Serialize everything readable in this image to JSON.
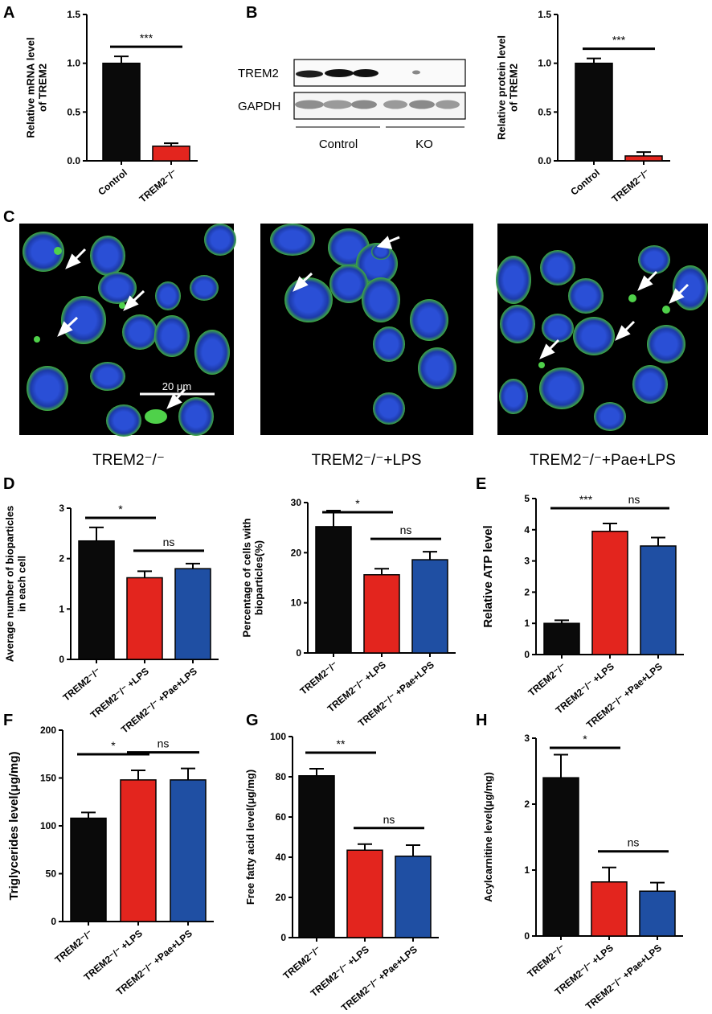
{
  "figure": {
    "panel_letters": [
      "A",
      "B",
      "C",
      "D",
      "E",
      "F",
      "G",
      "H"
    ],
    "colors": {
      "control": "#0a0a0a",
      "lps": "#e3251e",
      "pae_lps": "#1f4fa3",
      "cell_membrane": "#3fae3a",
      "nucleus": "#2a4fd6",
      "micro_bg": "#000000"
    }
  },
  "western_blot": {
    "row_labels": [
      "TREM2",
      "GAPDH"
    ],
    "group_labels": [
      "Control",
      "KO"
    ]
  },
  "microscopy": {
    "captions": [
      "TREM2⁻/⁻",
      "TREM2⁻/⁻+LPS",
      "TREM2⁻/⁻+Pae+LPS"
    ],
    "scale_bar_label": "20 μm",
    "panel_subject": [
      "fluorescent cells with arrows marking bioparticles"
    ]
  },
  "chart_data": [
    {
      "panel": "A",
      "type": "bar",
      "categories": [
        "Control",
        "TREM2⁻/⁻"
      ],
      "values": [
        1.0,
        0.15
      ],
      "errors": [
        0.07,
        0.03
      ],
      "colors": [
        "#0a0a0a",
        "#e3251e"
      ],
      "ylabel": "Relative mRNA level of TREM2",
      "ylabel_lines": [
        "Relative mRNA level",
        "of TREM2"
      ],
      "ylim": [
        0,
        1.5
      ],
      "yticks": [
        0.0,
        0.5,
        1.0,
        1.5
      ],
      "tick_labels": [
        "0.0",
        "0.5",
        "1.0",
        "1.5"
      ],
      "significance": [
        {
          "from": 0,
          "to": 1,
          "label": "***"
        }
      ]
    },
    {
      "panel": "B",
      "type": "bar",
      "categories": [
        "Control",
        "TREM2⁻/⁻"
      ],
      "values": [
        1.0,
        0.05
      ],
      "errors": [
        0.05,
        0.04
      ],
      "colors": [
        "#0a0a0a",
        "#e3251e"
      ],
      "ylabel": "Relative protein level of TREM2",
      "ylabel_lines": [
        "Relative protein level",
        "of TREM2"
      ],
      "ylim": [
        0,
        1.5
      ],
      "yticks": [
        0.0,
        0.5,
        1.0,
        1.5
      ],
      "tick_labels": [
        "0.0",
        "0.5",
        "1.0",
        "1.5"
      ],
      "significance": [
        {
          "from": 0,
          "to": 1,
          "label": "***"
        }
      ]
    },
    {
      "panel": "D1",
      "type": "bar",
      "categories": [
        "TREM2⁻/⁻",
        "TREM2⁻/⁻ +LPS",
        "TREM2⁻/⁻ +Pae+LPS"
      ],
      "values": [
        2.35,
        1.62,
        1.8
      ],
      "errors": [
        0.27,
        0.13,
        0.1
      ],
      "colors": [
        "#0a0a0a",
        "#e3251e",
        "#1f4fa3"
      ],
      "ylabel": "Average number of bioparticles in each cell",
      "ylabel_lines": [
        "Average number of bioparticles",
        "in each cell"
      ],
      "ylim": [
        0,
        3
      ],
      "yticks": [
        0,
        1,
        2,
        3
      ],
      "tick_labels": [
        "0",
        "1",
        "2",
        "3"
      ],
      "significance": [
        {
          "from": 0,
          "to": 1,
          "label": "*"
        },
        {
          "from": 1,
          "to": 2,
          "label": "ns"
        }
      ]
    },
    {
      "panel": "D2",
      "type": "bar",
      "categories": [
        "TREM2⁻/⁻",
        "TREM2⁻/⁻ +LPS",
        "TREM2⁻/⁻ +Pae+LPS"
      ],
      "values": [
        25.2,
        15.6,
        18.6
      ],
      "errors": [
        3.2,
        1.2,
        1.6
      ],
      "colors": [
        "#0a0a0a",
        "#e3251e",
        "#1f4fa3"
      ],
      "ylabel": "Percentage of cells with bioparticles(%)",
      "ylabel_lines": [
        "Percentage of cells with",
        "bioparticles(%)"
      ],
      "ylim": [
        0,
        30
      ],
      "yticks": [
        0,
        10,
        20,
        30
      ],
      "tick_labels": [
        "0",
        "10",
        "20",
        "30"
      ],
      "significance": [
        {
          "from": 0,
          "to": 1,
          "label": "*"
        },
        {
          "from": 1,
          "to": 2,
          "label": "ns"
        }
      ]
    },
    {
      "panel": "E",
      "type": "bar",
      "categories": [
        "TREM2⁻/⁻",
        "TREM2⁻/⁻ +LPS",
        "TREM2⁻/⁻ +Pae+LPS"
      ],
      "values": [
        1.0,
        3.95,
        3.48
      ],
      "errors": [
        0.1,
        0.25,
        0.27
      ],
      "colors": [
        "#0a0a0a",
        "#e3251e",
        "#1f4fa3"
      ],
      "ylabel": "Relative ATP level",
      "ylabel_lines": [
        "Relative ATP level"
      ],
      "ylim": [
        0,
        5
      ],
      "yticks": [
        0,
        1,
        2,
        3,
        4,
        5
      ],
      "tick_labels": [
        "0",
        "1",
        "2",
        "3",
        "4",
        "5"
      ],
      "significance": [
        {
          "from": 0,
          "to": 1,
          "label": "***"
        },
        {
          "from": 1,
          "to": 2,
          "label": "ns"
        }
      ]
    },
    {
      "panel": "F",
      "type": "bar",
      "categories": [
        "TREM2⁻/⁻",
        "TREM2⁻/⁻ +LPS",
        "TREM2⁻/⁻ +Pae+LPS"
      ],
      "values": [
        108,
        148,
        148
      ],
      "errors": [
        6,
        10,
        12
      ],
      "colors": [
        "#0a0a0a",
        "#e3251e",
        "#1f4fa3"
      ],
      "ylabel": "Triglycerides level(μg/mg)",
      "ylabel_lines": [
        "Triglycerides level(μg/mg)"
      ],
      "ylim": [
        0,
        200
      ],
      "yticks": [
        0,
        50,
        100,
        150,
        200
      ],
      "tick_labels": [
        "0",
        "50",
        "100",
        "150",
        "200"
      ],
      "significance": [
        {
          "from": 0,
          "to": 1,
          "label": "*"
        },
        {
          "from": 1,
          "to": 2,
          "label": "ns"
        }
      ]
    },
    {
      "panel": "G",
      "type": "bar",
      "categories": [
        "TREM2⁻/⁻",
        "TREM2⁻/⁻ +LPS",
        "TREM2⁻/⁻ +Pae+LPS"
      ],
      "values": [
        80.5,
        43.5,
        40.5
      ],
      "errors": [
        3.5,
        3,
        5.5
      ],
      "colors": [
        "#0a0a0a",
        "#e3251e",
        "#1f4fa3"
      ],
      "ylabel": "Free fatty acid level(μg/mg)",
      "ylabel_lines": [
        "Free fatty acid level(μg/mg)"
      ],
      "ylim": [
        0,
        100
      ],
      "yticks": [
        0,
        20,
        40,
        60,
        80,
        100
      ],
      "tick_labels": [
        "0",
        "20",
        "40",
        "60",
        "80",
        "100"
      ],
      "significance": [
        {
          "from": 0,
          "to": 1,
          "label": "**"
        },
        {
          "from": 1,
          "to": 2,
          "label": "ns"
        }
      ]
    },
    {
      "panel": "H",
      "type": "bar",
      "categories": [
        "TREM2⁻/⁻",
        "TREM2⁻/⁻ +LPS",
        "TREM2⁻/⁻ +Pae+LPS"
      ],
      "values": [
        2.4,
        0.82,
        0.68
      ],
      "errors": [
        0.35,
        0.22,
        0.13
      ],
      "colors": [
        "#0a0a0a",
        "#e3251e",
        "#1f4fa3"
      ],
      "ylabel": "Acylcarnitine level(μg/mg)",
      "ylabel_lines": [
        "Acylcarnitine level(μg/mg)"
      ],
      "ylim": [
        0,
        3
      ],
      "yticks": [
        0,
        1,
        2,
        3
      ],
      "tick_labels": [
        "0",
        "1",
        "2",
        "3"
      ],
      "significance": [
        {
          "from": 0,
          "to": 1,
          "label": "*"
        },
        {
          "from": 1,
          "to": 2,
          "label": "ns"
        }
      ]
    }
  ]
}
